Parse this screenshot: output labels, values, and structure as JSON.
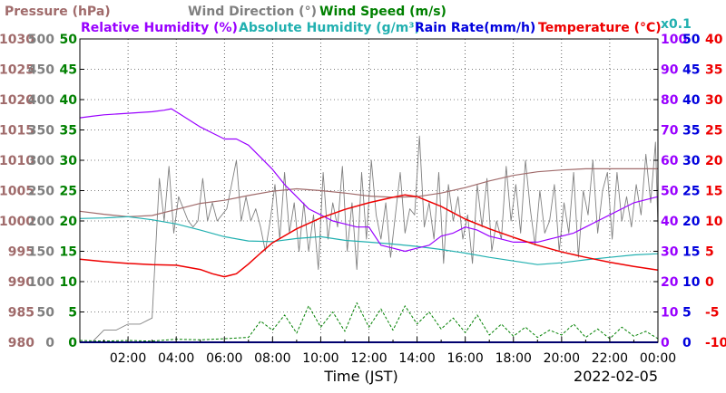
{
  "chart_data": {
    "type": "line",
    "titles": [
      {
        "text": "Pressure (hPa)",
        "color": "#a06b6b"
      },
      {
        "text": "Wind Direction (°)",
        "color": "#808080"
      },
      {
        "text": "Wind Speed (m/s)",
        "color": "#008000"
      },
      {
        "text": "Relative Humidity (%)",
        "color": "#9900ff"
      },
      {
        "text": "Absolute Humidity (g/m³)",
        "color": "#22b0b0"
      },
      {
        "text": "Rain Rate(mm/h)",
        "color": "#0000dd"
      },
      {
        "text": "Temperature (°C)",
        "color": "#ee0000"
      }
    ],
    "rain_scale_note": "x0.1",
    "xlabel": "Time (JST)",
    "date": "2022-02-05",
    "x_range_hours": [
      0,
      24
    ],
    "x_ticks": [
      "02:00",
      "04:00",
      "06:00",
      "08:00",
      "10:00",
      "12:00",
      "14:00",
      "16:00",
      "18:00",
      "20:00",
      "22:00",
      "00:00"
    ],
    "grid": true,
    "axes": [
      {
        "name": "Pressure",
        "unit": "hPa",
        "side": "left",
        "color": "#a06b6b",
        "min": 980,
        "max": 1030,
        "ticks": [
          "980",
          "985",
          "990",
          "995",
          "1000",
          "1005",
          "1010",
          "1015",
          "1020",
          "1025",
          "1030"
        ]
      },
      {
        "name": "Wind Direction",
        "unit": "°",
        "side": "left",
        "color": "#808080",
        "min": 0,
        "max": 500,
        "ticks": [
          "0",
          "50",
          "100",
          "150",
          "200",
          "250",
          "300",
          "350",
          "400",
          "450",
          "500"
        ]
      },
      {
        "name": "Wind Speed",
        "unit": "m/s",
        "side": "left",
        "color": "#008000",
        "min": 0,
        "max": 50,
        "ticks": [
          "0",
          "5",
          "10",
          "15",
          "20",
          "25",
          "30",
          "35",
          "40",
          "45",
          "50"
        ]
      },
      {
        "name": "Relative Humidity",
        "unit": "%",
        "side": "right",
        "color": "#9900ff",
        "min": 0,
        "max": 100,
        "ticks": [
          "0",
          "10",
          "20",
          "30",
          "40",
          "50",
          "60",
          "70",
          "80",
          "90",
          "100"
        ]
      },
      {
        "name": "Rain Rate",
        "unit": "mm/h x0.1",
        "side": "right",
        "color": "#0000dd",
        "min": 0,
        "max": 50,
        "ticks": [
          "0",
          "5",
          "10",
          "15",
          "20",
          "25",
          "30",
          "35",
          "40",
          "45",
          "50"
        ]
      },
      {
        "name": "Temperature",
        "unit": "°C",
        "side": "right",
        "color": "#ee0000",
        "min": -10,
        "max": 40,
        "ticks": [
          "-10",
          "-5",
          "0",
          "5",
          "10",
          "15",
          "20",
          "25",
          "30",
          "35",
          "40"
        ]
      }
    ],
    "series": [
      {
        "name": "Pressure",
        "axis": "Pressure",
        "color": "#a06b6b",
        "style": "line",
        "x": [
          0,
          1,
          2,
          3,
          4,
          5,
          6,
          7,
          8,
          9,
          10,
          11,
          12,
          13,
          14,
          15,
          16,
          17,
          18,
          19,
          20,
          21,
          22,
          23,
          24
        ],
        "y": [
          1001.6,
          1001.1,
          1000.7,
          1000.9,
          1001.9,
          1002.9,
          1003.4,
          1004.2,
          1004.9,
          1005.3,
          1005.0,
          1004.6,
          1004.1,
          1003.9,
          1004.0,
          1004.6,
          1005.5,
          1006.6,
          1007.5,
          1008.1,
          1008.4,
          1008.6,
          1008.6,
          1008.6,
          1008.6
        ]
      },
      {
        "name": "Relative Humidity",
        "axis": "Relative Humidity",
        "color": "#9900ff",
        "style": "line",
        "x": [
          0,
          0.5,
          1,
          2,
          3,
          3.5,
          3.8,
          4.2,
          5,
          5.5,
          6,
          6.5,
          7,
          7.5,
          8,
          8.5,
          9,
          9.5,
          10,
          10.5,
          11,
          11.5,
          12,
          12.5,
          13,
          13.5,
          14,
          14.5,
          15,
          15.5,
          16,
          16.5,
          17,
          17.5,
          18,
          18.5,
          19,
          19.5,
          20,
          20.5,
          21,
          21.5,
          22,
          22.5,
          23,
          23.5,
          24
        ],
        "y": [
          74,
          74.5,
          75,
          75.5,
          76,
          76.5,
          77,
          75,
          71,
          69,
          67,
          67,
          65,
          61,
          57,
          52,
          48,
          44,
          42,
          40,
          39,
          38,
          38,
          32,
          31,
          30,
          31,
          32,
          35,
          36,
          38,
          37,
          35,
          34,
          33,
          33,
          33,
          34,
          35,
          36,
          38,
          40,
          42,
          44,
          46,
          47,
          48
        ]
      },
      {
        "name": "Absolute Humidity",
        "axis": "Pressure",
        "color": "#22b0b0",
        "style": "line",
        "x": [
          0,
          1,
          2,
          3,
          4,
          5,
          6,
          7,
          8,
          9,
          10,
          11,
          12,
          13,
          14,
          15,
          16,
          17,
          18,
          19,
          20,
          21,
          22,
          23,
          24
        ],
        "y": [
          1000.4,
          1000.5,
          1000.7,
          1000.2,
          999.5,
          998.5,
          997.4,
          996.7,
          996.6,
          997.1,
          997.4,
          996.8,
          996.5,
          996.2,
          995.8,
          995.3,
          994.7,
          994.0,
          993.4,
          992.8,
          993.1,
          993.6,
          994.0,
          994.4,
          994.6
        ]
      },
      {
        "name": "Temperature",
        "axis": "Temperature",
        "color": "#ee0000",
        "style": "line",
        "x": [
          0,
          1,
          2,
          3,
          4,
          5,
          5.5,
          6,
          6.5,
          7,
          7.5,
          8,
          9,
          10,
          11,
          12,
          13,
          13.5,
          14,
          15,
          16,
          17,
          18,
          19,
          20,
          21,
          22,
          23,
          24
        ],
        "y": [
          3.7,
          3.3,
          3.0,
          2.8,
          2.7,
          2.0,
          1.3,
          0.8,
          1.3,
          2.9,
          4.7,
          6.4,
          8.7,
          10.5,
          11.9,
          13.0,
          13.9,
          14.3,
          14.0,
          12.4,
          10.3,
          8.7,
          7.3,
          6.0,
          4.9,
          4.0,
          3.2,
          2.5,
          1.9
        ]
      },
      {
        "name": "Wind Direction",
        "axis": "Wind Direction",
        "color": "#808080",
        "style": "jagged",
        "x": [
          0,
          0.5,
          1,
          1.5,
          2,
          2.5,
          3,
          3.3,
          3.5,
          3.7,
          3.9,
          4.1,
          4.3,
          4.5,
          4.7,
          4.9,
          5.1,
          5.3,
          5.5,
          5.7,
          5.9,
          6.1,
          6.3,
          6.5,
          6.7,
          6.9,
          7.1,
          7.3,
          7.5,
          7.7,
          7.9,
          8.1,
          8.3,
          8.5,
          8.7,
          8.9,
          9.1,
          9.3,
          9.5,
          9.7,
          9.9,
          10.1,
          10.3,
          10.5,
          10.7,
          10.9,
          11.1,
          11.3,
          11.5,
          11.7,
          11.9,
          12.1,
          12.3,
          12.5,
          12.7,
          12.9,
          13.1,
          13.3,
          13.5,
          13.7,
          13.9,
          14.1,
          14.3,
          14.5,
          14.7,
          14.9,
          15.1,
          15.3,
          15.5,
          15.7,
          15.9,
          16.1,
          16.3,
          16.5,
          16.7,
          16.9,
          17.1,
          17.3,
          17.5,
          17.7,
          17.9,
          18.1,
          18.3,
          18.5,
          18.7,
          18.9,
          19.1,
          19.3,
          19.5,
          19.7,
          19.9,
          20.1,
          20.3,
          20.5,
          20.7,
          20.9,
          21.1,
          21.3,
          21.5,
          21.7,
          21.9,
          22.1,
          22.3,
          22.5,
          22.7,
          22.9,
          23.1,
          23.3,
          23.5,
          23.7,
          23.9,
          24
        ],
        "y": [
          0,
          0,
          20,
          20,
          30,
          30,
          40,
          270,
          200,
          290,
          180,
          240,
          220,
          200,
          190,
          200,
          270,
          200,
          230,
          200,
          210,
          220,
          260,
          300,
          200,
          240,
          200,
          220,
          190,
          150,
          200,
          260,
          170,
          280,
          180,
          230,
          150,
          230,
          150,
          210,
          120,
          280,
          170,
          230,
          190,
          290,
          150,
          230,
          120,
          280,
          170,
          300,
          210,
          170,
          230,
          140,
          210,
          280,
          180,
          220,
          210,
          340,
          190,
          230,
          170,
          280,
          130,
          260,
          200,
          240,
          170,
          210,
          130,
          260,
          190,
          270,
          150,
          200,
          170,
          290,
          200,
          260,
          180,
          300,
          220,
          160,
          250,
          180,
          200,
          260,
          150,
          230,
          180,
          280,
          140,
          250,
          210,
          300,
          180,
          250,
          280,
          170,
          280,
          200,
          240,
          190,
          260,
          210,
          310,
          230,
          330,
          190
        ]
      },
      {
        "name": "Wind Speed",
        "axis": "Wind Speed",
        "color": "#008000",
        "style": "jagged",
        "x": [
          0,
          1,
          2,
          3,
          4,
          5,
          6,
          7,
          7.5,
          8,
          8.5,
          9,
          9.5,
          10,
          10.5,
          11,
          11.5,
          12,
          12.5,
          13,
          13.5,
          14,
          14.5,
          15,
          15.5,
          16,
          16.5,
          17,
          17.5,
          18,
          18.5,
          19,
          19.5,
          20,
          20.5,
          21,
          21.5,
          22,
          22.5,
          23,
          23.5,
          24
        ],
        "y": [
          0.3,
          0.2,
          0.3,
          0.2,
          0.5,
          0.4,
          0.6,
          0.8,
          3.5,
          2.0,
          4.5,
          1.5,
          6.0,
          2.5,
          5.0,
          1.8,
          6.5,
          2.5,
          5.5,
          2.0,
          6.0,
          3.0,
          5.0,
          2.2,
          4.0,
          1.6,
          4.5,
          1.2,
          3.0,
          1.0,
          2.5,
          0.8,
          2.0,
          1.2,
          3.0,
          0.8,
          2.2,
          0.6,
          2.5,
          1.0,
          1.8,
          0.6
        ]
      },
      {
        "name": "Rain Rate",
        "axis": "Rain Rate",
        "color": "#0000dd",
        "style": "line",
        "x": [
          0,
          24
        ],
        "y": [
          0,
          0
        ]
      }
    ]
  }
}
